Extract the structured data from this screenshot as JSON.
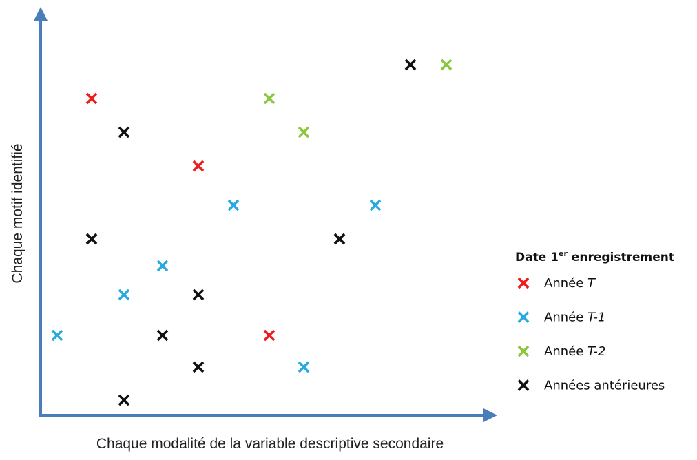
{
  "chart_data": {
    "type": "scatter",
    "xlabel": "Chaque modalité de la variable descriptive secondaire",
    "ylabel": "Chaque motif identifié",
    "ticks": "none",
    "grid": false,
    "axis_color": "#4a7ebb",
    "legend": {
      "title_prefix": "Date 1",
      "title_sup": "er",
      "title_suffix": " enregistrement",
      "placement": "right"
    },
    "series": [
      {
        "name_prefix": "Année ",
        "name_italic": "T",
        "color": "#ee1c1c",
        "points": [
          [
            133,
            143
          ],
          [
            288,
            241
          ],
          [
            391,
            487
          ]
        ]
      },
      {
        "name_prefix": "Année ",
        "name_italic": "T-1",
        "color": "#29a9e1",
        "points": [
          [
            339,
            298
          ],
          [
            545,
            298
          ],
          [
            236,
            386
          ],
          [
            180,
            428
          ],
          [
            83,
            487
          ],
          [
            441,
            533
          ]
        ]
      },
      {
        "name_prefix": "Année ",
        "name_italic": "T-2",
        "color": "#8dc63f",
        "points": [
          [
            648,
            94
          ],
          [
            391,
            143
          ],
          [
            441,
            192
          ]
        ]
      },
      {
        "name_prefix": "Années antérieures",
        "name_italic": "",
        "color": "#111111",
        "points": [
          [
            596,
            94
          ],
          [
            180,
            192
          ],
          [
            133,
            347
          ],
          [
            493,
            347
          ],
          [
            288,
            428
          ],
          [
            236,
            487
          ],
          [
            288,
            533
          ],
          [
            180,
            581
          ]
        ]
      }
    ]
  }
}
